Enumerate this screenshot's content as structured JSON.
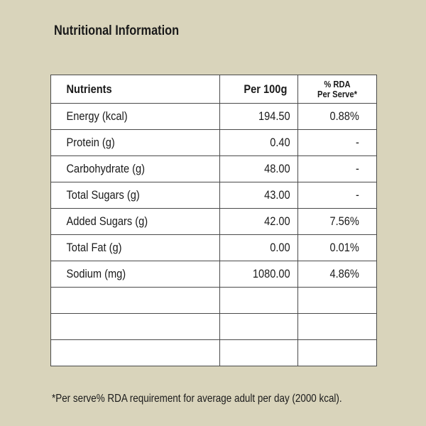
{
  "title": "Nutritional Information",
  "table": {
    "headers": {
      "nutrients": "Nutrients",
      "per_100g": "Per 100g",
      "rda_line1": "% RDA",
      "rda_line2": "Per Serve*"
    },
    "rows": [
      {
        "nutrient": "Energy (kcal)",
        "per_100g": "194.50",
        "rda": "0.88%"
      },
      {
        "nutrient": "Protein (g)",
        "per_100g": "0.40",
        "rda": "-"
      },
      {
        "nutrient": "Carbohydrate (g)",
        "per_100g": "48.00",
        "rda": "-"
      },
      {
        "nutrient": "Total Sugars (g)",
        "per_100g": "43.00",
        "rda": "-"
      },
      {
        "nutrient": "Added Sugars (g)",
        "per_100g": "42.00",
        "rda": "7.56%"
      },
      {
        "nutrient": "Total Fat (g)",
        "per_100g": "0.00",
        "rda": "0.01%"
      },
      {
        "nutrient": "Sodium (mg)",
        "per_100g": "1080.00",
        "rda": "4.86%"
      },
      {
        "nutrient": "",
        "per_100g": "",
        "rda": ""
      },
      {
        "nutrient": "",
        "per_100g": "",
        "rda": ""
      },
      {
        "nutrient": "",
        "per_100g": "",
        "rda": ""
      }
    ]
  },
  "footnote": "*Per serve% RDA requirement for average adult per day (2000 kcal)."
}
